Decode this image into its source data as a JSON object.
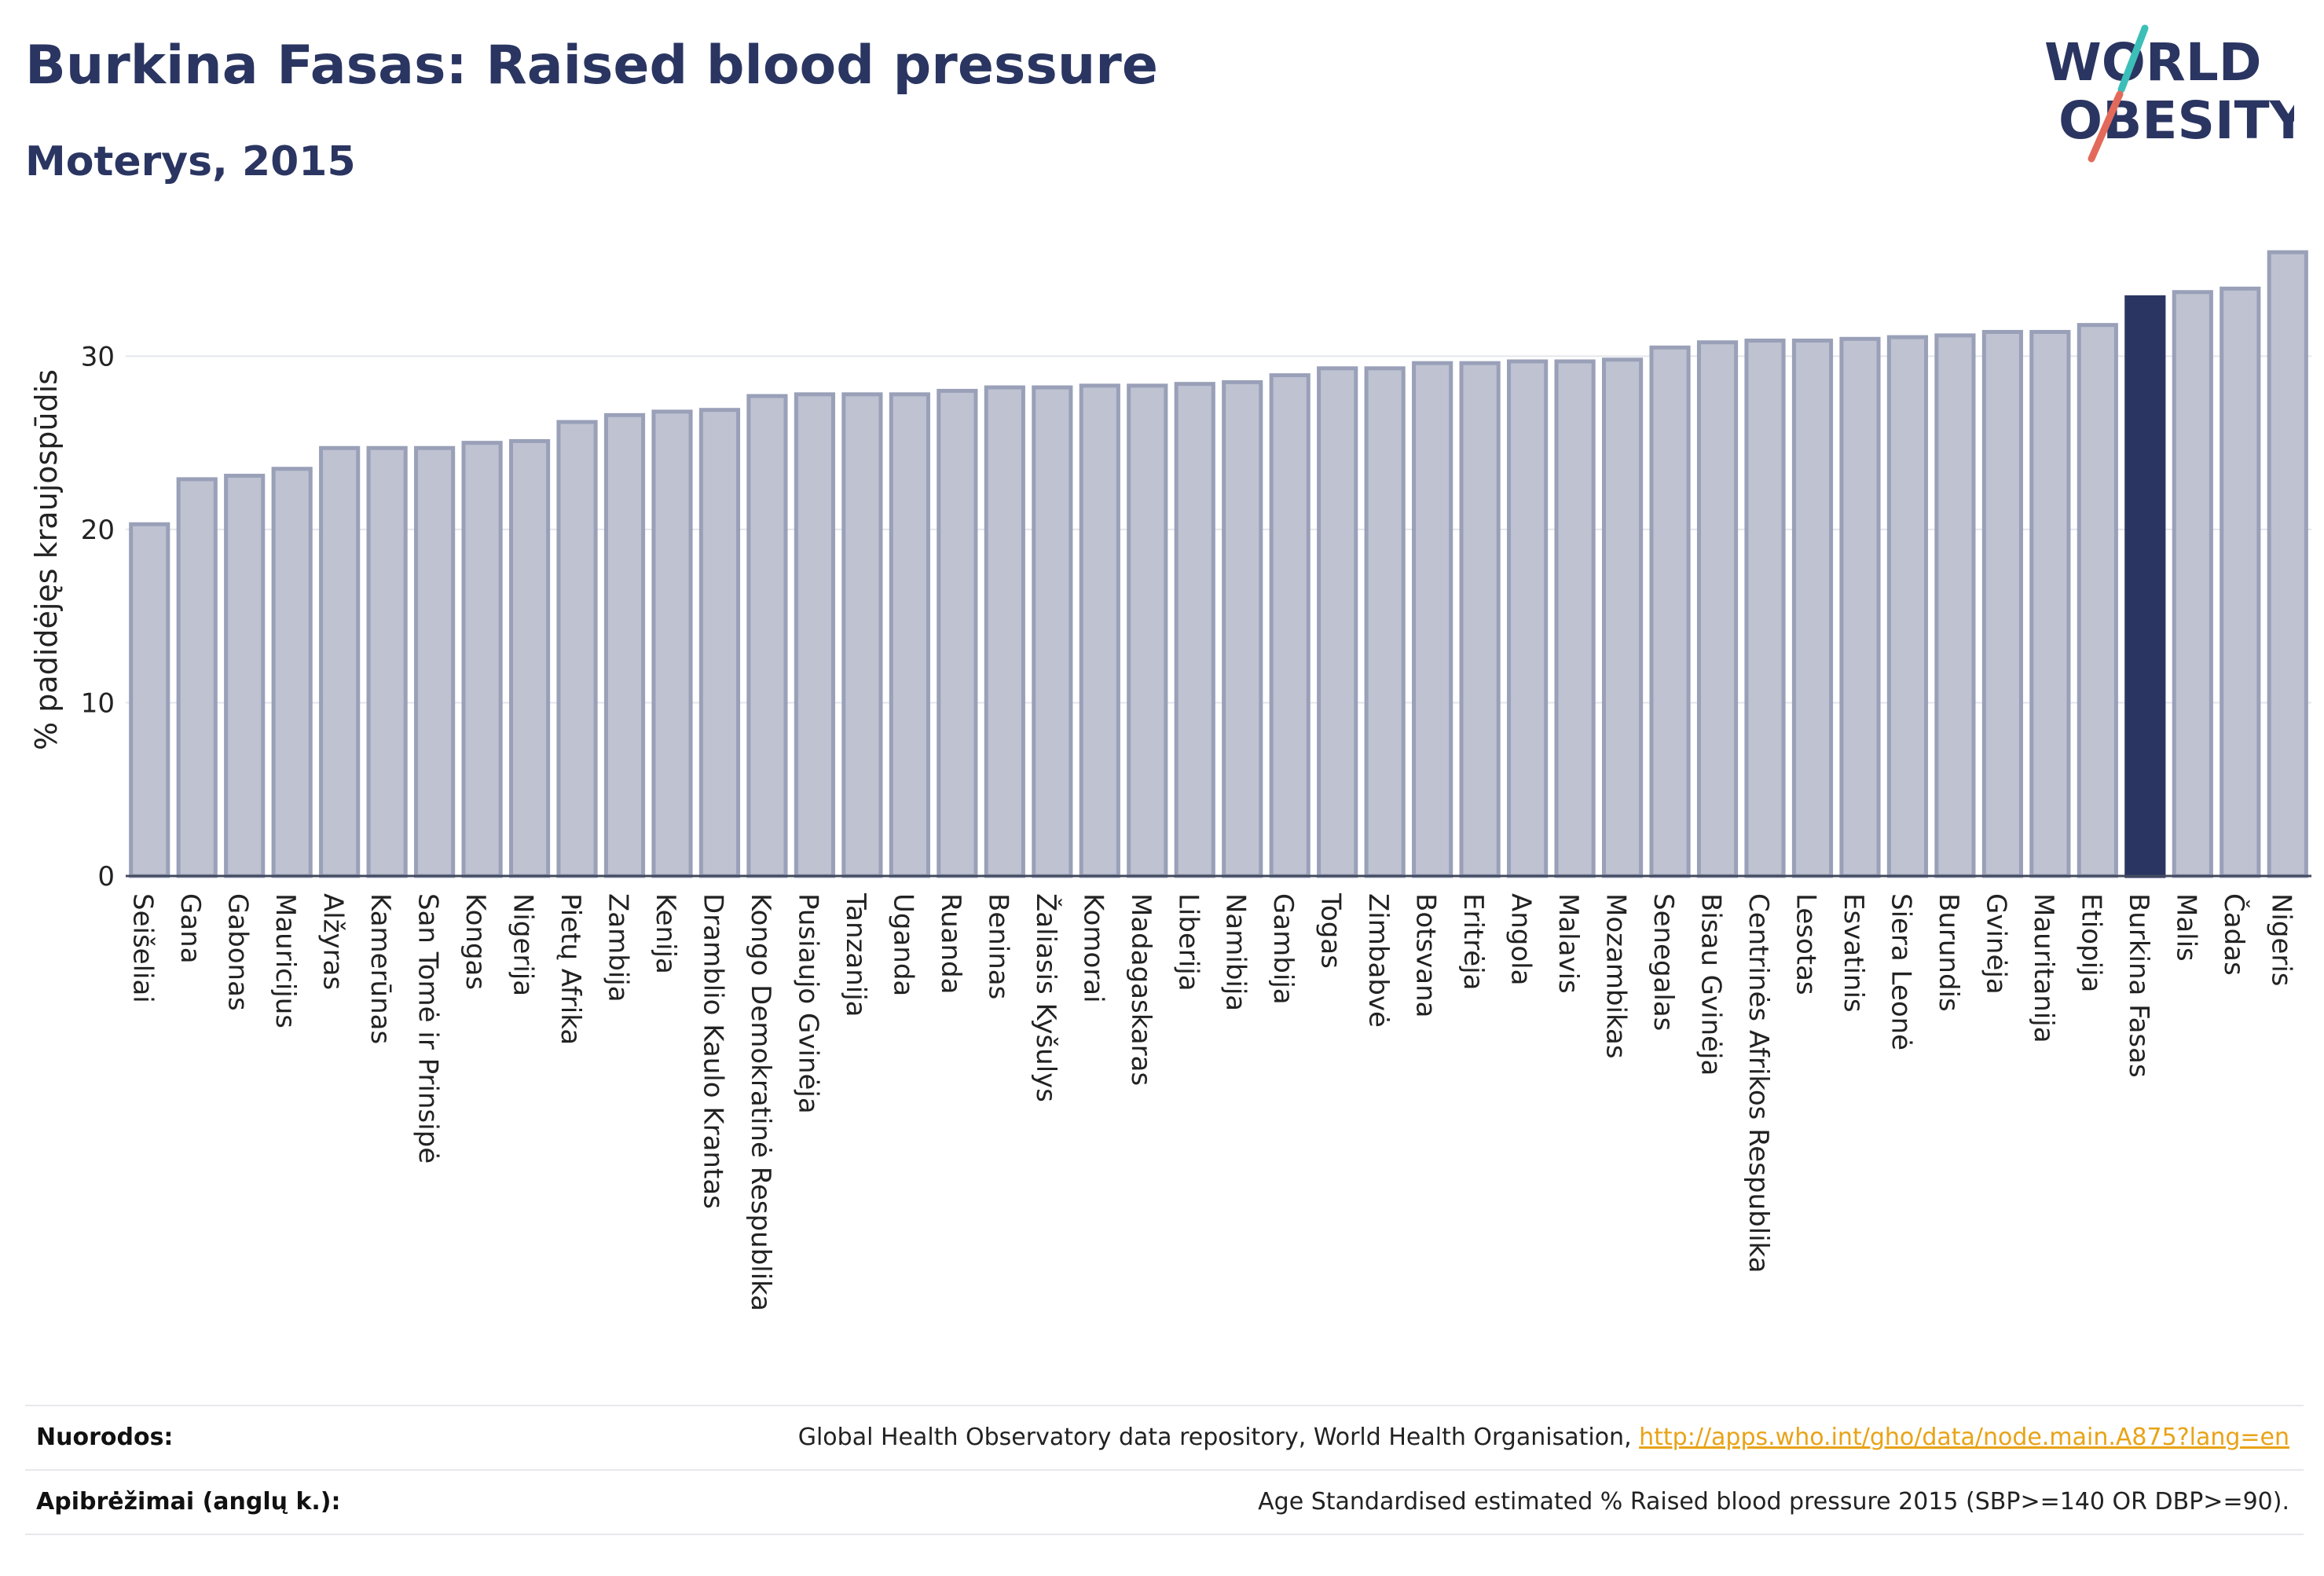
{
  "title": "Burkina Fasas: Raised blood pressure",
  "subtitle": "Moterys, 2015",
  "logo": {
    "line1": "WORLD",
    "line2": "OBESITY"
  },
  "colors": {
    "bar": "#bec2d1",
    "bar_border": "#99a0b8",
    "highlight": "#2a3561",
    "grid": "#e4e6ec",
    "logo_slash_top": "#3bbfb8",
    "logo_slash_bottom": "#e36a5a"
  },
  "chart_data": {
    "type": "bar",
    "ylabel": "% padidėjęs kraujospūdis",
    "ylim": [
      0,
      36.5
    ],
    "yticks": [
      0,
      10,
      20,
      30
    ],
    "grid": true,
    "highlight": "Burkina Fasas",
    "categories": [
      "Seišeliai",
      "Gana",
      "Gabonas",
      "Mauricijus",
      "Alžyras",
      "Kamerūnas",
      "San Tomė ir Prinsipė",
      "Kongas",
      "Nigerija",
      "Pietų Afrika",
      "Zambija",
      "Kenija",
      "Dramblio Kaulo Krantas",
      "Kongo Demokratinė Respublika",
      "Pusiaujo Gvinėja",
      "Tanzanija",
      "Uganda",
      "Ruanda",
      "Beninas",
      "Žaliasis Kyšulys",
      "Komorai",
      "Madagaskaras",
      "Liberija",
      "Namibija",
      "Gambija",
      "Togas",
      "Zimbabvė",
      "Botsvana",
      "Eritrėja",
      "Angola",
      "Malavis",
      "Mozambikas",
      "Senegalas",
      "Bisau Gvinėja",
      "Centrinės Afrikos Respublika",
      "Lesotas",
      "Esvatinis",
      "Siera Leonė",
      "Burundis",
      "Gvinėja",
      "Mauritanija",
      "Etiopija",
      "Burkina Fasas",
      "Malis",
      "Čadas",
      "Nigeris"
    ],
    "values": [
      20.3,
      22.9,
      23.1,
      23.5,
      24.7,
      24.7,
      24.7,
      25.0,
      25.1,
      26.2,
      26.6,
      26.8,
      26.9,
      27.7,
      27.8,
      27.8,
      27.8,
      28.0,
      28.2,
      28.2,
      28.3,
      28.3,
      28.4,
      28.5,
      28.9,
      29.3,
      29.3,
      29.6,
      29.6,
      29.7,
      29.7,
      29.8,
      30.5,
      30.8,
      30.9,
      30.9,
      31.0,
      31.1,
      31.2,
      31.4,
      31.4,
      31.8,
      33.4,
      33.7,
      33.9,
      36.0
    ]
  },
  "footer": {
    "references_label": "Nuorodos:",
    "references_text": "Global Health Observatory data repository, World Health Organisation, ",
    "references_link": "http://apps.who.int/gho/data/node.main.A875?lang=en",
    "definitions_label": "Apibrėžimai (anglų k.):",
    "definitions_text": "Age Standardised estimated % Raised blood pressure 2015 (SBP>=140 OR DBP>=90)."
  }
}
